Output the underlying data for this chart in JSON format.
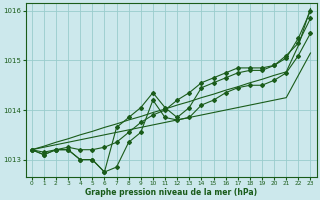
{
  "xlabel": "Graphe pression niveau de la mer (hPa)",
  "bg_color": "#cce8ec",
  "grid_color": "#99cccc",
  "line_color": "#1a5c1a",
  "xlim": [
    -0.5,
    23.5
  ],
  "ylim": [
    1012.65,
    1016.15
  ],
  "yticks": [
    1013,
    1014,
    1015,
    1016
  ],
  "xticks": [
    0,
    1,
    2,
    3,
    4,
    5,
    6,
    7,
    8,
    9,
    10,
    11,
    12,
    13,
    14,
    15,
    16,
    17,
    18,
    19,
    20,
    21,
    22,
    23
  ],
  "lines_with_markers": [
    [
      1013.2,
      1013.1,
      1013.2,
      1013.2,
      1013.0,
      1013.0,
      1012.75,
      1012.85,
      1013.35,
      1013.55,
      1014.2,
      1013.85,
      1013.8,
      1013.85,
      1014.1,
      1014.2,
      1014.35,
      1014.45,
      1014.5,
      1014.5,
      1014.6,
      1014.75,
      1015.1,
      1015.55
    ],
    [
      1013.2,
      1013.1,
      1013.2,
      1013.2,
      1013.0,
      1013.0,
      1012.75,
      1013.65,
      1013.85,
      1014.05,
      1014.35,
      1014.05,
      1013.85,
      1014.05,
      1014.45,
      1014.55,
      1014.65,
      1014.75,
      1014.8,
      1014.8,
      1014.9,
      1015.1,
      1015.35,
      1015.85
    ],
    [
      1013.2,
      1013.15,
      1013.2,
      1013.25,
      1013.2,
      1013.2,
      1013.25,
      1013.35,
      1013.55,
      1013.75,
      1013.9,
      1014.0,
      1014.2,
      1014.35,
      1014.55,
      1014.65,
      1014.75,
      1014.85,
      1014.85,
      1014.85,
      1014.9,
      1015.05,
      1015.45,
      1016.0
    ]
  ],
  "lines_no_markers": [
    [
      1013.2,
      1013.27,
      1013.35,
      1013.42,
      1013.5,
      1013.57,
      1013.65,
      1013.72,
      1013.8,
      1013.87,
      1013.95,
      1014.02,
      1014.1,
      1014.17,
      1014.25,
      1014.32,
      1014.4,
      1014.47,
      1014.55,
      1014.62,
      1014.7,
      1014.77,
      1015.3,
      1016.05
    ],
    [
      1013.2,
      1013.25,
      1013.3,
      1013.35,
      1013.4,
      1013.45,
      1013.5,
      1013.55,
      1013.6,
      1013.65,
      1013.7,
      1013.75,
      1013.8,
      1013.85,
      1013.9,
      1013.95,
      1014.0,
      1014.05,
      1014.1,
      1014.15,
      1014.2,
      1014.25,
      1014.7,
      1015.15
    ]
  ]
}
